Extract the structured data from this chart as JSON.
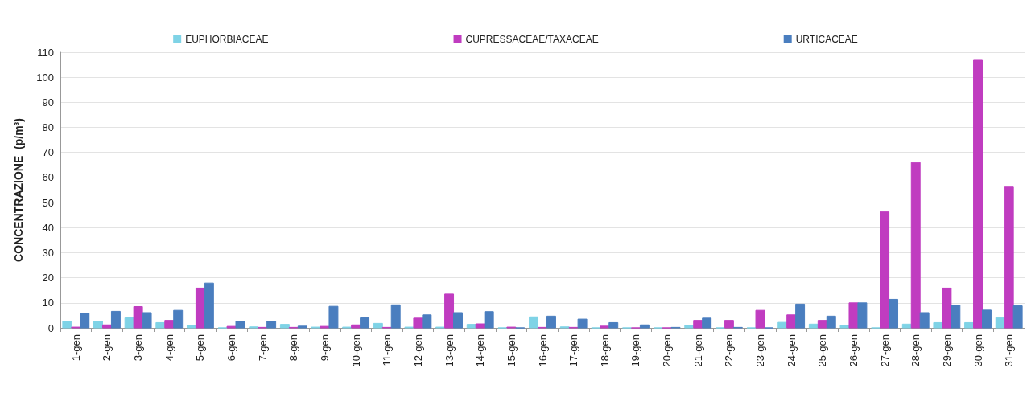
{
  "chart_data": {
    "type": "bar",
    "ylabel": "CONCENTRAZIONE  (p/m³)",
    "categories": [
      "1-gen",
      "2-gen",
      "3-gen",
      "4-gen",
      "5-gen",
      "6-gen",
      "7-gen",
      "8-gen",
      "9-gen",
      "10-gen",
      "11-gen",
      "12-gen",
      "13-gen",
      "14-gen",
      "15-gen",
      "16-gen",
      "17-gen",
      "18-gen",
      "19-gen",
      "20-gen",
      "21-gen",
      "22-gen",
      "23-gen",
      "24-gen",
      "25-gen",
      "26-gen",
      "27-gen",
      "28-gen",
      "29-gen",
      "30-gen",
      "31-gen"
    ],
    "series": [
      {
        "name": "EUPHORBIACEAE",
        "color": "#7fd3e6",
        "values": [
          2.7,
          2.7,
          4.0,
          2.1,
          1.0,
          0,
          0.4,
          1.4,
          0.3,
          0.3,
          1.8,
          0.3,
          0.3,
          1.4,
          0,
          4.4,
          0.4,
          0,
          0,
          0,
          1.0,
          0,
          0,
          2.2,
          1.5,
          1.0,
          0,
          1.5,
          2.1,
          2.1,
          4.1
        ]
      },
      {
        "name": "CUPRESSACEAE/TAXACEAE",
        "color": "#c03cc0",
        "values": [
          0.3,
          1.2,
          8.5,
          3.0,
          15.9,
          0.6,
          0.2,
          0.2,
          0.6,
          1.2,
          0.2,
          3.9,
          13.5,
          1.6,
          0.3,
          0.2,
          0.2,
          0.7,
          0,
          0,
          3.0,
          3.0,
          7.0,
          5.2,
          3.0,
          10.0,
          46.3,
          66.0,
          15.9,
          106.8,
          56.2
        ]
      },
      {
        "name": "URTICACEAE",
        "color": "#4a7ebf",
        "values": [
          5.8,
          6.6,
          6.1,
          7.0,
          17.9,
          2.6,
          2.6,
          0.7,
          8.6,
          4.0,
          9.2,
          5.2,
          6.1,
          6.5,
          0,
          4.7,
          3.5,
          2.1,
          1.2,
          0.2,
          3.9,
          0.2,
          0,
          9.5,
          4.7,
          10.0,
          11.4,
          6.1,
          9.1,
          7.1,
          8.8
        ]
      }
    ],
    "ylim": [
      0,
      110
    ],
    "yticks": [
      0,
      10,
      20,
      30,
      40,
      50,
      60,
      70,
      80,
      90,
      100,
      110
    ],
    "grid": "y",
    "legend": "top"
  }
}
